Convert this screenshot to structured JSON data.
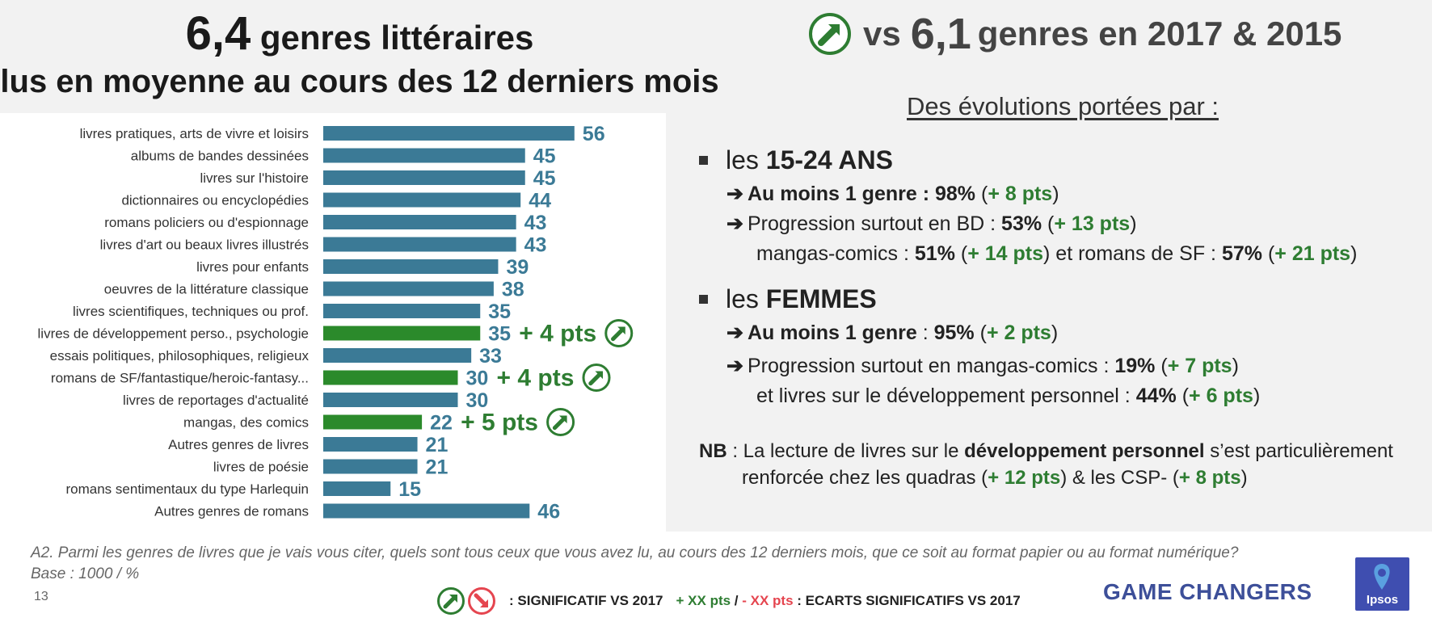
{
  "header": {
    "left_big": "6,4",
    "left_line1": "genres littéraires",
    "left_line2": "lus en moyenne au cours des 12 derniers mois",
    "right_vs": "vs",
    "right_big": "6,1",
    "right_rest": "genres en 2017 & 2015"
  },
  "evolutions": {
    "heading": "Des évolutions portées par :",
    "young": {
      "les": "les ",
      "group": "15-24 ANS",
      "r1_label": "Au moins 1 genre : ",
      "r1_val": "98%",
      "r1_open": " (",
      "r1_delta": "+ 8 pts",
      "r1_close": ")",
      "r2_label": "Progression surtout en BD : ",
      "r2_val": "53%",
      "r2_open": " (",
      "r2_delta": "+ 13 pts",
      "r2_close": ")",
      "r3_label": "mangas-comics : ",
      "r3_val": "51%",
      "r3_open": " (",
      "r3_delta": "+ 14 pts",
      "r3_mid": ") et romans de SF : ",
      "r3_val2": "57%",
      "r3_open2": " (",
      "r3_delta2": "+ 21 pts",
      "r3_close": ")"
    },
    "women": {
      "les": "les ",
      "group": "FEMMES",
      "r1_label": "Au moins 1 genre",
      "r1_colon": " : ",
      "r1_val": "95%",
      "r1_open": " (",
      "r1_delta": "+ 2 pts",
      "r1_close": ")",
      "r2_label": "Progression surtout en mangas-comics :  ",
      "r2_val": "19%",
      "r2_open": " (",
      "r2_delta": "+ 7 pts",
      "r2_close": ")",
      "r3_label": "et livres sur le développement personnel : ",
      "r3_val": "44%",
      "r3_open": " (",
      "r3_delta": "+ 6 pts",
      "r3_close": ")"
    },
    "nb": {
      "label": "NB",
      "text1": " : La lecture de livres sur le ",
      "bold": "développement personnel",
      "text2": " s’est particulièrement",
      "text3": "renforcée chez les quadras (",
      "delta1": "+ 12 pts",
      "text4": ") & les CSP- (",
      "delta2": "+ 8 pts",
      "text5": ")"
    }
  },
  "footer": {
    "question": "A2. Parmi les genres de livres que je vais vous citer, quels sont tous ceux que vous avez lu, au cours des 12 derniers mois, que ce soit au format papier ou au format numérique?",
    "base": "Base : 1000 / %",
    "page_number": "13",
    "legend_sig": ": SIGNIFICATIF VS 2017",
    "legend_plus": "+ XX pts",
    "legend_slash": " / ",
    "legend_minus": "- XX pts",
    "legend_ecarts": ": ECARTS SIGNIFICATIFS VS 2017",
    "brand": "GAME CHANGERS",
    "logo_text": "Ipsos"
  },
  "colors": {
    "bar_default": "#3b7a96",
    "bar_highlight": "#2b8a2b",
    "value_text": "#3b7a96",
    "delta_green": "#2e7d32",
    "delta_red": "#e5454f"
  },
  "chart_data": {
    "type": "bar",
    "orientation": "horizontal",
    "categories": [
      "livres pratiques, arts de vivre et loisirs",
      "albums de bandes dessinées",
      "livres sur l'histoire",
      "dictionnaires ou encyclopédies",
      "romans policiers ou d'espionnage",
      "livres d'art ou beaux livres illustrés",
      "livres pour enfants",
      "oeuvres de la littérature classique",
      "livres scientifiques, techniques ou prof.",
      "livres de développement perso., psychologie",
      "essais politiques, philosophiques, religieux",
      "romans de SF/fantastique/heroic-fantasy...",
      "livres de reportages d'actualité",
      "mangas, des comics",
      "Autres genres de livres",
      "livres de poésie",
      "romans sentimentaux du type Harlequin",
      "Autres genres de romans"
    ],
    "values": [
      56,
      45,
      45,
      44,
      43,
      43,
      39,
      38,
      35,
      35,
      33,
      30,
      30,
      22,
      21,
      21,
      15,
      46
    ],
    "highlight": [
      false,
      false,
      false,
      false,
      false,
      false,
      false,
      false,
      false,
      true,
      false,
      true,
      false,
      true,
      false,
      false,
      false,
      false
    ],
    "deltas": [
      "",
      "",
      "",
      "",
      "",
      "",
      "",
      "",
      "",
      "+ 4 pts",
      "",
      "+ 4 pts",
      "",
      "+ 5 pts",
      "",
      "",
      "",
      ""
    ],
    "xlim": [
      0,
      60
    ]
  }
}
